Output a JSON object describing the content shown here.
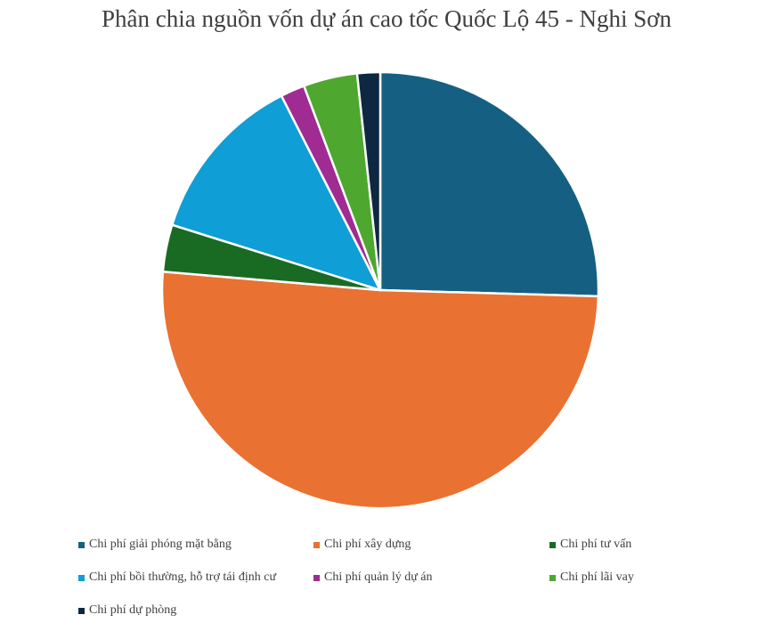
{
  "chart_data": {
    "type": "pie",
    "title": "Phân chia nguồn vốn dự án cao tốc Quốc Lộ 45 - Nghi Sơn",
    "legend_position": "bottom",
    "slices": [
      {
        "label": "Chi phí giải phóng mặt bằng",
        "value": 25.5,
        "color": "#156082"
      },
      {
        "label": "Chi phí xây dựng",
        "value": 51.0,
        "color": "#E97132"
      },
      {
        "label": "Chi phí tư vấn",
        "value": 3.5,
        "color": "#196B24"
      },
      {
        "label": "Chi phí bồi thường, hỗ trợ tái định cư",
        "value": 12.7,
        "color": "#0F9ED5"
      },
      {
        "label": "Chi phí quản lý dự án",
        "value": 1.8,
        "color": "#A02B93"
      },
      {
        "label": "Chi phí lãi vay",
        "value": 4.0,
        "color": "#4EA72E"
      },
      {
        "label": "Chi phí dự phòng",
        "value": 1.7,
        "color": "#0E2841"
      }
    ]
  }
}
